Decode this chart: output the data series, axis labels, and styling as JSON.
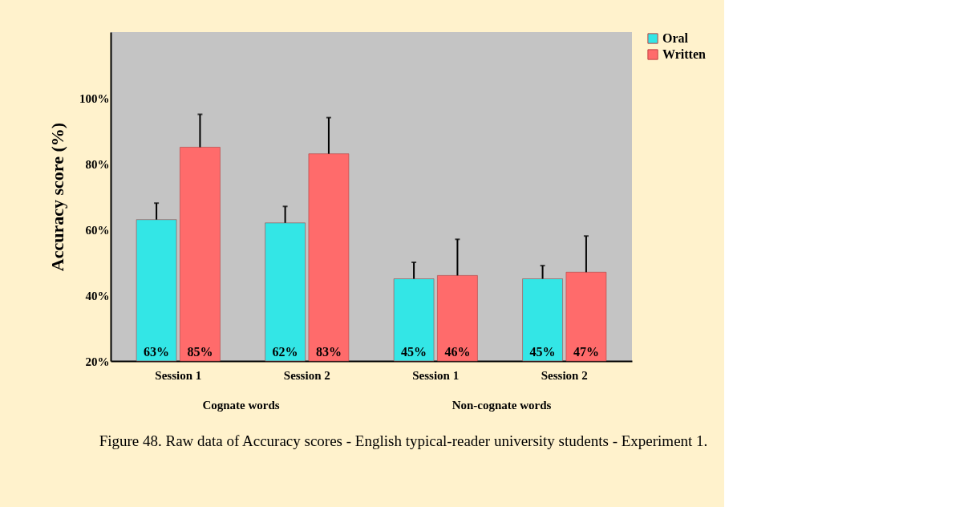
{
  "chart_data": {
    "type": "bar",
    "ylabel": "Accuracy score (%)",
    "categories": [
      "Session 1",
      "Session 2",
      "Session 1",
      "Session 2"
    ],
    "series": [
      {
        "name": "Oral",
        "color": "#33e6e6",
        "values": [
          63,
          62,
          45,
          45
        ],
        "value_labels": [
          "63%",
          "62%",
          "45%",
          "45%"
        ],
        "errors": [
          [
            63,
            68
          ],
          [
            62,
            67
          ],
          [
            45,
            50
          ],
          [
            45,
            49
          ]
        ]
      },
      {
        "name": "Written",
        "color": "#ff6b6b",
        "values": [
          85,
          83,
          46,
          47
        ],
        "value_labels": [
          "85%",
          "83%",
          "46%",
          "47%"
        ],
        "errors": [
          [
            85,
            95
          ],
          [
            83,
            94
          ],
          [
            46,
            57
          ],
          [
            47,
            58
          ]
        ]
      }
    ],
    "ylim": [
      20,
      120
    ],
    "yticks": [
      {
        "value": 20,
        "label": "20%"
      },
      {
        "value": 40,
        "label": "40%"
      },
      {
        "value": 60,
        "label": "60%"
      },
      {
        "value": 80,
        "label": "80%"
      },
      {
        "value": 100,
        "label": "100%"
      }
    ],
    "grid": false,
    "legend": "right",
    "annotations": [
      "Cognate words",
      "Non-cognate words",
      "Figure 48. Raw data of Accuracy scores - English typical-reader university students - Experiment 1."
    ]
  }
}
